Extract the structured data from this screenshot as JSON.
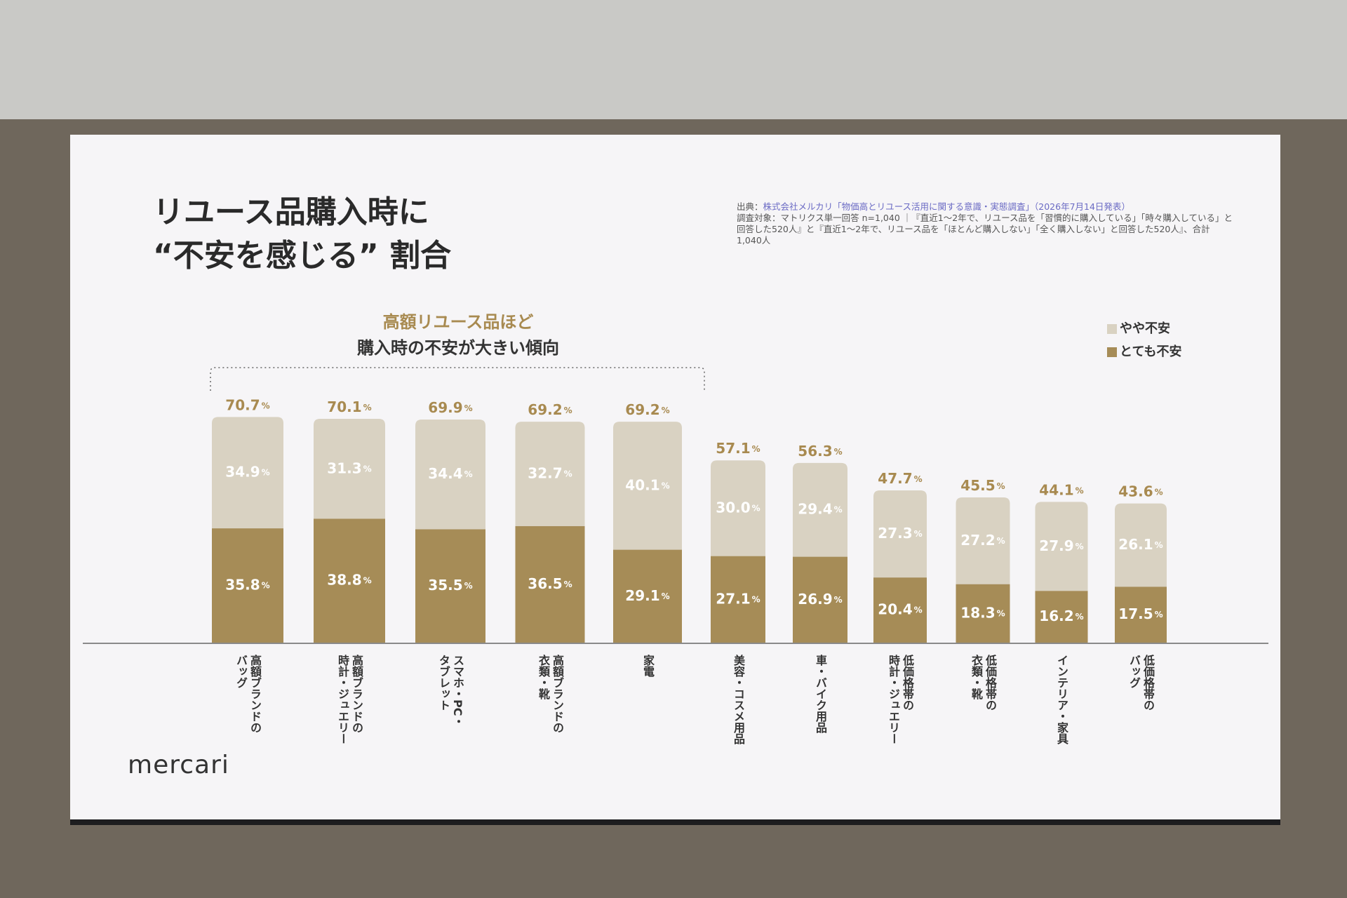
{
  "chart_data": {
    "type": "bar",
    "stacked": true,
    "title": "リユース品購入時に\n“不安を感じる” 割合",
    "annotation": {
      "highlight": "高額リユース品ほど",
      "text": "購入時の不安が大きい傾向"
    },
    "source": {
      "label": "出典：",
      "text": "株式会社メルカリ「物価高とリユース活用に関する意識・実態調査」（2026年7月14日発表）"
    },
    "note": "調査対象：マトリクス単一回答 n=1,040 ｜『直近1〜2年で、リユース品を「習慣的に購入している」「時々購入している」と回答した520人』と『直近1〜2年で、リユース品を「ほとんど購入しない」「全く購入しない」と回答した520人』、合計1,040人",
    "unit": "%",
    "categories": [
      "高額ブランドの\nバッグ",
      "高額ブランドの\n時計・ジュエリー",
      "スマホ・PC・\nタブレット",
      "高額ブランドの\n衣類・靴",
      "家電",
      "美容・コスメ用品",
      "車・バイク用品",
      "低価格帯の\n時計・ジュエリー",
      "低価格帯の\n衣類・靴",
      "インテリア・家具",
      "低価格帯の\nバッグ"
    ],
    "series": [
      {
        "name": "とても不安",
        "color": "#a68c57",
        "values": [
          35.8,
          38.8,
          35.5,
          36.5,
          29.1,
          27.1,
          26.9,
          20.4,
          18.3,
          16.2,
          17.5
        ],
        "value_labels": [
          "35.8",
          "38.8",
          "35.5",
          "36.5",
          "29.1",
          "27.1",
          "26.9",
          "20.4",
          "18.3",
          "16.2",
          "17.5"
        ]
      },
      {
        "name": "やや不安",
        "color": "#d9d2c2",
        "values": [
          34.9,
          31.3,
          34.4,
          32.7,
          40.1,
          30.0,
          29.4,
          27.3,
          27.2,
          27.9,
          26.1
        ],
        "value_labels": [
          "34.9",
          "31.3",
          "34.4",
          "32.7",
          "40.1",
          "30.0",
          "29.4",
          "27.3",
          "27.2",
          "27.9",
          "26.1"
        ]
      }
    ],
    "totals": [
      70.7,
      70.1,
      69.9,
      69.2,
      69.2,
      57.1,
      56.3,
      47.7,
      45.5,
      44.1,
      43.6
    ],
    "total_color": "#a88a50",
    "logo": "mercari"
  }
}
